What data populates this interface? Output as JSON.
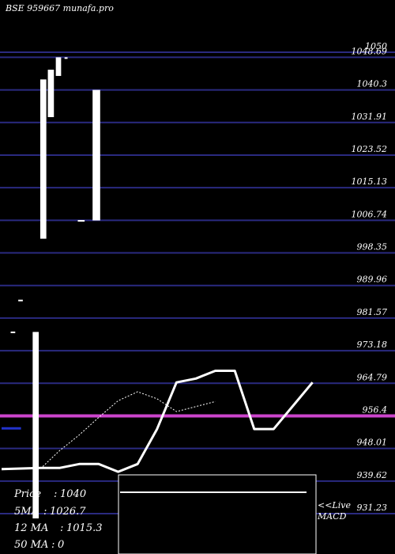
{
  "chart_data": {
    "type": "candlestick",
    "title": "BSE 959667 munafa.pro",
    "y_tick_labels": [
      "1050",
      "1048.69",
      "1040.3",
      "1031.91",
      "1023.52",
      "1015.13",
      "1006.74",
      "998.35",
      "989.96",
      "981.57",
      "973.18",
      "964.79",
      "956.4",
      "948.01",
      "939.62",
      "931.23"
    ],
    "y_tick_values": [
      1050,
      1048.69,
      1040.3,
      1031.91,
      1023.52,
      1015.13,
      1006.74,
      998.35,
      989.96,
      981.57,
      973.18,
      964.79,
      956.4,
      948.01,
      939.62,
      931.23
    ],
    "ylim": [
      930.5,
      1051.8
    ],
    "x_slots": 14,
    "candles": [
      {
        "open": 978.1,
        "close": 977.9
      },
      {
        "open": 986.3,
        "close": 986.0
      },
      {
        "open": 978.0,
        "close": 930.0
      },
      {
        "open": 1043.0,
        "close": 1002.0
      },
      {
        "open": 1045.5,
        "close": 1033.3
      },
      {
        "open": 1048.7,
        "close": 1043.9
      },
      {
        "open": 1048.7,
        "close": 1048.5
      },
      {
        "open": 1006.8,
        "close": 1006.6
      },
      {
        "open": 1040.3,
        "close": 1006.7
      }
    ],
    "highlight_level": 956.4,
    "ma_lines": [
      {
        "name": "5 MA",
        "color": "#ffffff",
        "points": [
          [
            0,
            942.7
          ],
          [
            2,
            943.0
          ],
          [
            3,
            943.0
          ],
          [
            4,
            944.0
          ],
          [
            5,
            944.0
          ],
          [
            6,
            942.0
          ],
          [
            7,
            944.0
          ],
          [
            8,
            953.0
          ],
          [
            9,
            965.0
          ],
          [
            10,
            966.0
          ],
          [
            11,
            968.0
          ],
          [
            12,
            968.0
          ],
          [
            13,
            953.0
          ],
          [
            14,
            953.0
          ],
          [
            16,
            965.0
          ]
        ]
      },
      {
        "name": "12 MA",
        "color": "#ffffff",
        "dashed": true,
        "points": [
          [
            2,
            942.8
          ],
          [
            3,
            947.5
          ],
          [
            4,
            951.5
          ],
          [
            5,
            956.0
          ],
          [
            6,
            960.3
          ],
          [
            7,
            962.6
          ],
          [
            8,
            960.8
          ],
          [
            9,
            957.5
          ],
          [
            10,
            958.8
          ],
          [
            11,
            960.1
          ]
        ]
      },
      {
        "name": "50 MA",
        "color": "#2233cc",
        "points": [
          [
            0,
            953.2
          ],
          [
            1,
            953.2
          ]
        ]
      }
    ],
    "stats": {
      "price_label": "Price",
      "price_value": "1040",
      "ma5_label": "5MA",
      "ma5_value": "1026.7",
      "ma12_label": "12 MA",
      "ma12_value": "1015.3",
      "ma50_label": "50 MA",
      "ma50_value": "0"
    },
    "macd": {
      "label_line1": "<<Live",
      "label_line2": "MACD"
    },
    "colors": {
      "background": "#000000",
      "grid": "#2a2a80",
      "candle": "#ffffff",
      "highlight": "#cc44cc",
      "macd_box": "#ffffff"
    }
  }
}
